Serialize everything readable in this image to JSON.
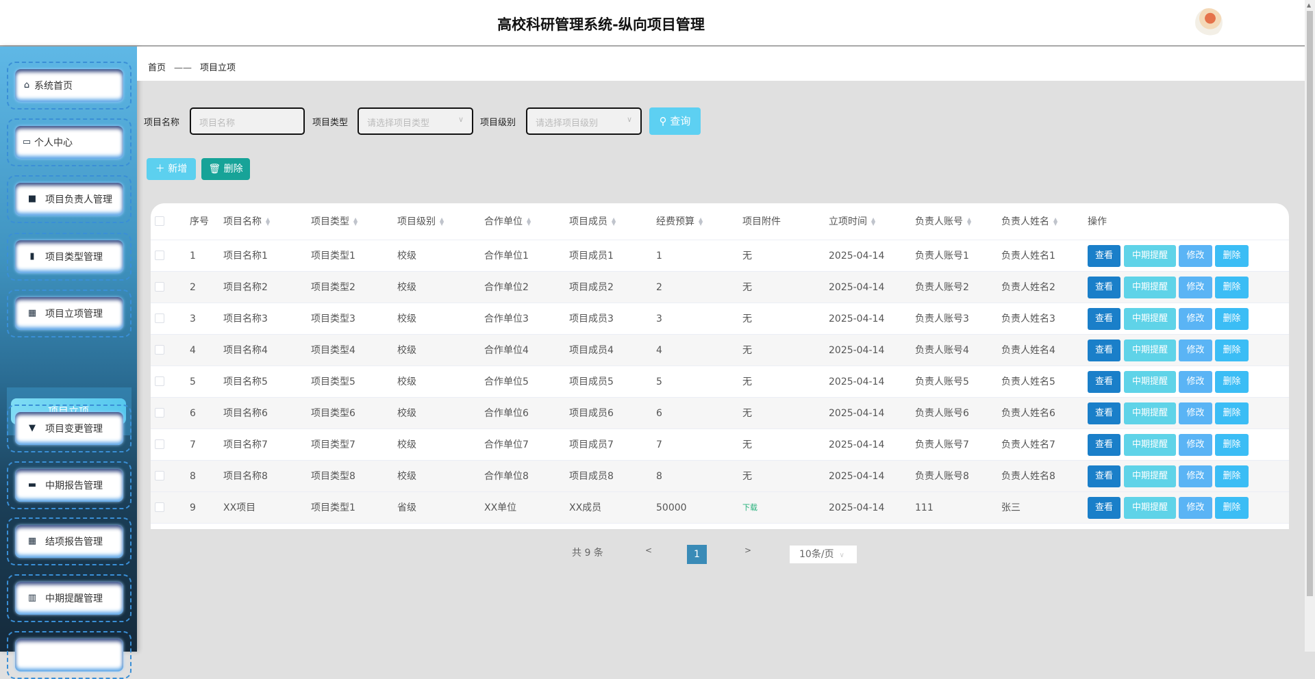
{
  "header": {
    "title": "高校科研管理系统-纵向项目管理"
  },
  "sidebar": {
    "items": [
      {
        "label": "系统首页",
        "icon": "home-icon"
      },
      {
        "label": "个人中心",
        "icon": "wallet-icon"
      },
      {
        "label": "项目负责人管理",
        "icon": "briefcase-icon"
      },
      {
        "label": "项目类型管理",
        "icon": "clipboard-icon"
      },
      {
        "label": "项目立项管理",
        "icon": "grid-icon"
      },
      {
        "label": "项目变更管理",
        "icon": "brush-icon"
      },
      {
        "label": "中期报告管理",
        "icon": "monitor-icon"
      },
      {
        "label": "结项报告管理",
        "icon": "grid-icon"
      },
      {
        "label": "中期提醒管理",
        "icon": "book-icon"
      },
      {
        "label": "",
        "icon": ""
      }
    ],
    "active_sub": "项目立项"
  },
  "breadcrumb": {
    "home": "首页",
    "sep": "——",
    "current": "项目立项"
  },
  "search": {
    "name_label": "项目名称",
    "name_placeholder": "项目名称",
    "type_label": "项目类型",
    "type_placeholder": "请选择项目类型",
    "level_label": "项目级别",
    "level_placeholder": "请选择项目级别",
    "query": "查询"
  },
  "actions": {
    "add": "新增",
    "delete": "删除"
  },
  "table": {
    "columns": [
      "序号",
      "项目名称",
      "项目类型",
      "项目级别",
      "合作单位",
      "项目成员",
      "经费预算",
      "项目附件",
      "立项时间",
      "负责人账号",
      "负责人姓名",
      "操作"
    ],
    "rows": [
      [
        "1",
        "项目名称1",
        "项目类型1",
        "校级",
        "合作单位1",
        "项目成员1",
        "1",
        "无",
        "2025-04-14",
        "负责人账号1",
        "负责人姓名1"
      ],
      [
        "2",
        "项目名称2",
        "项目类型2",
        "校级",
        "合作单位2",
        "项目成员2",
        "2",
        "无",
        "2025-04-14",
        "负责人账号2",
        "负责人姓名2"
      ],
      [
        "3",
        "项目名称3",
        "项目类型3",
        "校级",
        "合作单位3",
        "项目成员3",
        "3",
        "无",
        "2025-04-14",
        "负责人账号3",
        "负责人姓名3"
      ],
      [
        "4",
        "项目名称4",
        "项目类型4",
        "校级",
        "合作单位4",
        "项目成员4",
        "4",
        "无",
        "2025-04-14",
        "负责人账号4",
        "负责人姓名4"
      ],
      [
        "5",
        "项目名称5",
        "项目类型5",
        "校级",
        "合作单位5",
        "项目成员5",
        "5",
        "无",
        "2025-04-14",
        "负责人账号5",
        "负责人姓名5"
      ],
      [
        "6",
        "项目名称6",
        "项目类型6",
        "校级",
        "合作单位6",
        "项目成员6",
        "6",
        "无",
        "2025-04-14",
        "负责人账号6",
        "负责人姓名6"
      ],
      [
        "7",
        "项目名称7",
        "项目类型7",
        "校级",
        "合作单位7",
        "项目成员7",
        "7",
        "无",
        "2025-04-14",
        "负责人账号7",
        "负责人姓名7"
      ],
      [
        "8",
        "项目名称8",
        "项目类型8",
        "校级",
        "合作单位8",
        "项目成员8",
        "8",
        "无",
        "2025-04-14",
        "负责人账号8",
        "负责人姓名8"
      ],
      [
        "9",
        "XX项目",
        "项目类型1",
        "省级",
        "XX单位",
        "XX成员",
        "50000",
        "下载",
        "2025-04-14",
        "111",
        "张三"
      ]
    ],
    "row_actions": [
      "查看",
      "中期提醒",
      "修改",
      "删除"
    ],
    "action_colors": [
      "#1a7fc9",
      "#5fd3e8",
      "#5ab4f5",
      "#3bbdf5"
    ]
  },
  "pagination": {
    "total": "共 9 条",
    "prev": "<",
    "page": "1",
    "next": ">",
    "page_size": "10条/页"
  },
  "colors": {
    "add": "#5cd0ef",
    "delete": "#17a398",
    "query": "#5dd0f2",
    "page_active": "#3a8bb7"
  }
}
